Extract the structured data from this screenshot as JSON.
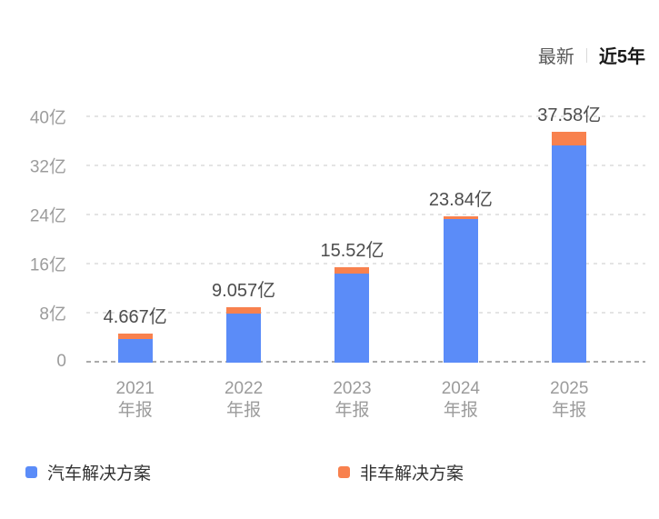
{
  "header": {
    "latest_label": "最新",
    "range_label": "近5年"
  },
  "colors": {
    "auto_series": "#5B8CF8",
    "non_auto_series": "#F8814E",
    "gridline": "#e4e4e4",
    "zero_line": "#ababab",
    "tick_text": "#9c9c9c",
    "value_text": "#4d4d4d"
  },
  "chart_data": {
    "type": "bar",
    "stacked": true,
    "title": "",
    "xlabel": "",
    "ylabel": "",
    "ylim": [
      0,
      40
    ],
    "grid": "dashed-horizontal",
    "legend_position": "bottom",
    "unit": "亿",
    "categories": [
      {
        "line1": "2021",
        "line2": "年报"
      },
      {
        "line1": "2022",
        "line2": "年报"
      },
      {
        "line1": "2023",
        "line2": "年报"
      },
      {
        "line1": "2024",
        "line2": "年报"
      },
      {
        "line1": "2025",
        "line2": "年报"
      }
    ],
    "yticks": [
      {
        "value": 0,
        "label": "0"
      },
      {
        "value": 8,
        "label": "8亿"
      },
      {
        "value": 16,
        "label": "16亿"
      },
      {
        "value": 24,
        "label": "24亿"
      },
      {
        "value": 32,
        "label": "32亿"
      },
      {
        "value": 40,
        "label": "40亿"
      }
    ],
    "series": [
      {
        "name": "汽车解决方案",
        "color": "#5B8CF8",
        "values": [
          3.85,
          8.0,
          14.5,
          23.35,
          35.4
        ]
      },
      {
        "name": "非车解决方案",
        "color": "#F8814E",
        "values": [
          0.82,
          1.06,
          1.02,
          0.49,
          2.18
        ]
      }
    ],
    "totals": [
      4.667,
      9.057,
      15.52,
      23.84,
      37.58
    ],
    "total_labels": [
      "4.667亿",
      "9.057亿",
      "15.52亿",
      "23.84亿",
      "37.58亿"
    ]
  },
  "legend": {
    "items": [
      {
        "label": "汽车解决方案"
      },
      {
        "label": "非车解决方案"
      }
    ]
  }
}
